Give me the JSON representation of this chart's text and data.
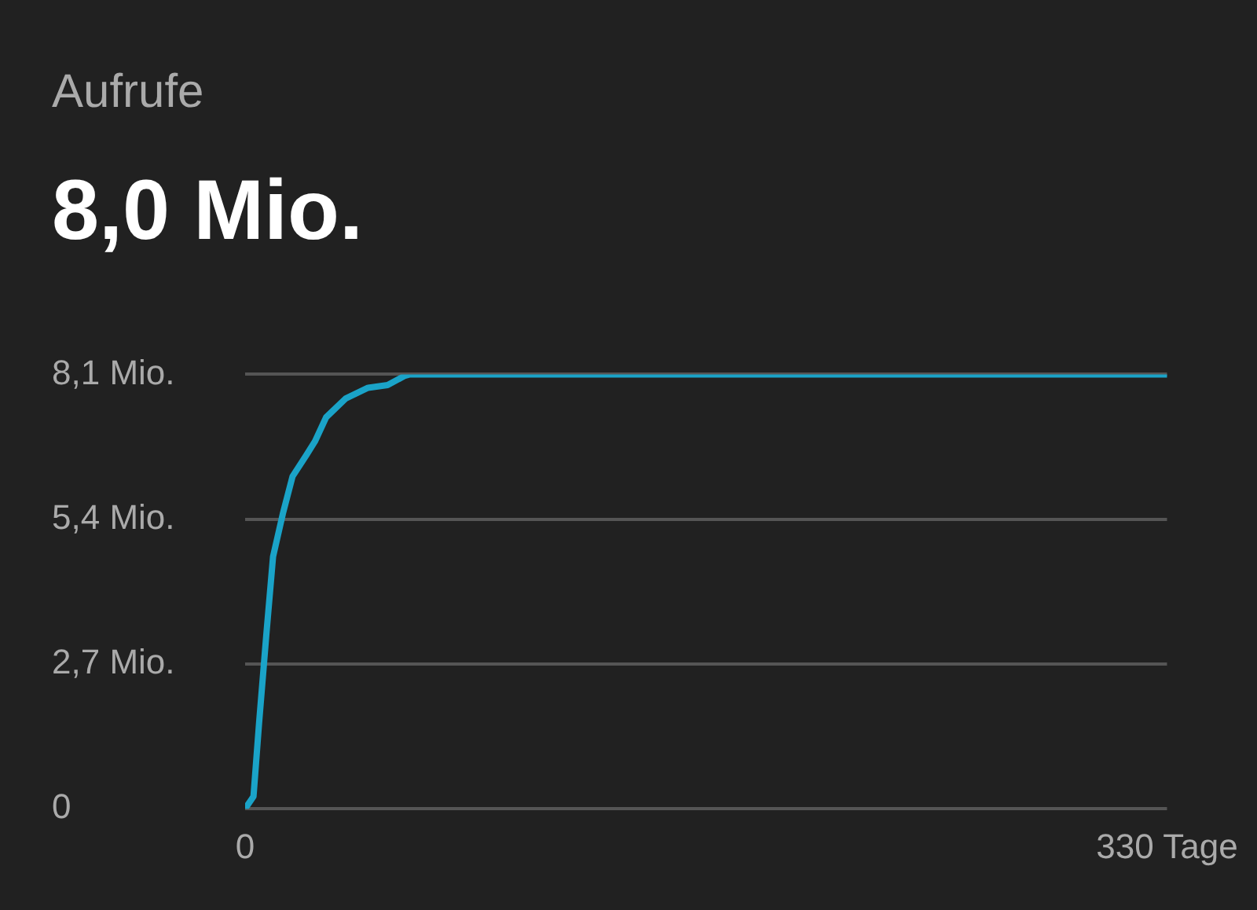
{
  "chart_data": {
    "type": "line",
    "title": "Aufrufe",
    "subtitle": "8,0 Mio.",
    "x": [
      0,
      3,
      5,
      7.6,
      10,
      13.5,
      17,
      22,
      25,
      29,
      36,
      44,
      51,
      57,
      59,
      330
    ],
    "series": [
      {
        "color": "#1aa3c8",
        "values": [
          0,
          0.23,
          1.6,
          3.25,
          4.7,
          5.5,
          6.2,
          6.6,
          6.85,
          7.3,
          7.65,
          7.85,
          7.9,
          8.07,
          8.1,
          8.1
        ]
      }
    ],
    "xlim": [
      0,
      330
    ],
    "xticks": [
      0,
      {
        "value": 330,
        "label": "330 Tage"
      }
    ],
    "ylim": [
      0,
      8.1
    ],
    "yticks": [
      0,
      {
        "value": 2.7,
        "label": "2,7 Mio."
      },
      {
        "value": 5.4,
        "label": "5,4 Mio."
      },
      {
        "value": 8.1,
        "label": "8,1 Mio."
      }
    ],
    "grid": "y",
    "legend": false,
    "marker": "none",
    "line_style": "solid"
  }
}
